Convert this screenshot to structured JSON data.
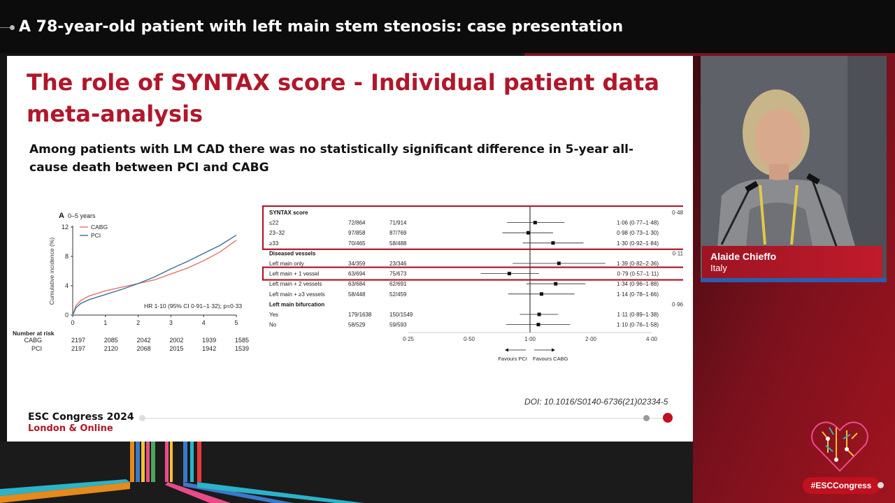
{
  "header": {
    "title": "A 78-year-old patient with left main stem stenosis: case presentation"
  },
  "slide": {
    "title": "The role of SYNTAX score - Individual patient data meta-analysis",
    "subtitle": "Among patients with LM CAD there was no statistically significant difference in 5-year all-cause death between PCI and CABG",
    "doi": "DOI: 10.1016/S0140-6736(21)02334-5",
    "congress_name": "ESC Congress 2024",
    "congress_city": "London & Online"
  },
  "speaker": {
    "name": "Alaide Chieffo",
    "country": "Italy"
  },
  "hashtag": "#ESCCongress",
  "colors": {
    "accent_red": "#b0172a",
    "brand_red": "#c0111f",
    "cabg_line": "#e0736b",
    "pci_line": "#3a6f9a"
  },
  "chart_data": [
    {
      "type": "line",
      "panel_label": "A",
      "panel_title": "0–5 years",
      "ylabel": "Cumulative incidence (%)",
      "xlabel": "",
      "x_ticks": [
        "0",
        "1",
        "2",
        "3",
        "4",
        "5"
      ],
      "y_ticks": [
        "0",
        "4",
        "8",
        "12"
      ],
      "xlim": [
        0,
        5
      ],
      "ylim": [
        0,
        12
      ],
      "annotation": "HR 1·10 (95% CI 0·91–1·32); p=0·33",
      "series": [
        {
          "name": "CABG",
          "color": "#e0736b",
          "x": [
            0,
            0.1,
            0.25,
            0.5,
            1,
            1.5,
            2,
            2.5,
            3,
            3.5,
            4,
            4.5,
            5
          ],
          "y": [
            0,
            1.3,
            2.0,
            2.6,
            3.3,
            3.8,
            4.3,
            4.8,
            5.6,
            6.4,
            7.4,
            8.6,
            10.2
          ]
        },
        {
          "name": "PCI",
          "color": "#3a6f9a",
          "x": [
            0,
            0.1,
            0.25,
            0.5,
            1,
            1.5,
            2,
            2.5,
            3,
            3.5,
            4,
            4.5,
            5
          ],
          "y": [
            0,
            1.0,
            1.6,
            2.1,
            2.8,
            3.5,
            4.3,
            5.2,
            6.3,
            7.3,
            8.4,
            9.5,
            10.9
          ]
        }
      ],
      "risk_table": {
        "title": "Number at risk",
        "rows": [
          {
            "label": "CABG",
            "values": [
              "2197",
              "2085",
              "2042",
              "2002",
              "1939",
              "1585"
            ]
          },
          {
            "label": "PCI",
            "values": [
              "2197",
              "2120",
              "2068",
              "2015",
              "1942",
              "1539"
            ]
          }
        ]
      }
    },
    {
      "type": "forest",
      "x_scale": "log",
      "x_ticks": [
        "0·25",
        "0·50",
        "1·00",
        "2·00",
        "4·00"
      ],
      "xlim": [
        0.25,
        4
      ],
      "favours_left": "Favours PCI",
      "favours_right": "Favours CABG",
      "highlight_colors": "#b0172a",
      "rows": [
        {
          "kind": "header",
          "label": "SYNTAX score",
          "p": "0·48",
          "highlighted": true
        },
        {
          "kind": "item",
          "label": "≤22",
          "pci": "72/864",
          "cabg": "71/914",
          "hr": 1.06,
          "lo": 0.77,
          "hi": 1.48,
          "text": "1·06 (0·77–1·48)",
          "highlighted": true
        },
        {
          "kind": "item",
          "label": "23–32",
          "pci": "97/858",
          "cabg": "87/769",
          "hr": 0.98,
          "lo": 0.73,
          "hi": 1.3,
          "text": "0·98 (0·73–1·30)",
          "highlighted": true
        },
        {
          "kind": "item",
          "label": "≥33",
          "pci": "70/465",
          "cabg": "58/488",
          "hr": 1.3,
          "lo": 0.92,
          "hi": 1.84,
          "text": "1·30 (0·92–1·84)",
          "highlighted": true
        },
        {
          "kind": "header",
          "label": "Diseased vessels",
          "p": "0·11"
        },
        {
          "kind": "item",
          "label": "Left main only",
          "pci": "34/359",
          "cabg": "23/346",
          "hr": 1.39,
          "lo": 0.82,
          "hi": 2.36,
          "text": "1·39 (0·82–2·36)"
        },
        {
          "kind": "item",
          "label": "Left main + 1 vessel",
          "pci": "63/694",
          "cabg": "75/673",
          "hr": 0.79,
          "lo": 0.57,
          "hi": 1.11,
          "text": "0·79 (0·57–1·11)",
          "highlighted": true
        },
        {
          "kind": "item",
          "label": "Left main + 2 vessels",
          "pci": "63/684",
          "cabg": "62/691",
          "hr": 1.34,
          "lo": 0.96,
          "hi": 1.88,
          "text": "1·34 (0·96–1·88)"
        },
        {
          "kind": "item",
          "label": "Left main + ≥3 vessels",
          "pci": "58/448",
          "cabg": "52/459",
          "hr": 1.14,
          "lo": 0.78,
          "hi": 1.66,
          "text": "1·14 (0·78–1·66)"
        },
        {
          "kind": "header",
          "label": "Left main bifurcation",
          "p": "0·96"
        },
        {
          "kind": "item",
          "label": "Yes",
          "pci": "179/1638",
          "cabg": "150/1549",
          "hr": 1.11,
          "lo": 0.89,
          "hi": 1.38,
          "text": "1·11 (0·89–1·38)"
        },
        {
          "kind": "item",
          "label": "No",
          "pci": "58/529",
          "cabg": "59/593",
          "hr": 1.1,
          "lo": 0.76,
          "hi": 1.58,
          "text": "1·10 (0·76–1·58)"
        }
      ]
    }
  ]
}
